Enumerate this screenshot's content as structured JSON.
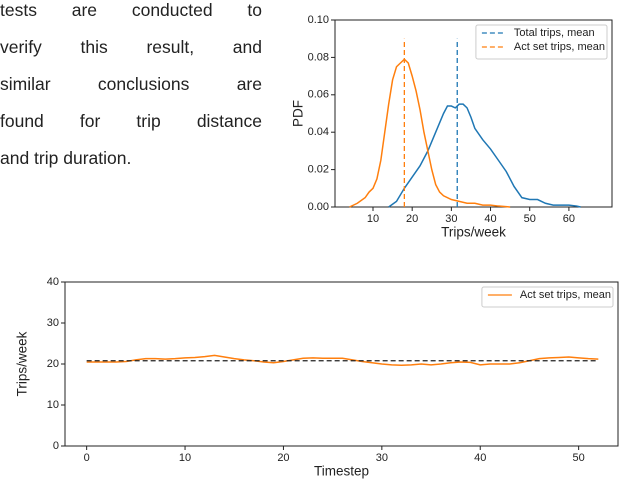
{
  "text": {
    "lines": [
      "tests are conducted to",
      "verify this result, and",
      "similar conclusions are",
      "found for trip distance",
      "and trip duration."
    ]
  },
  "chart_data": [
    {
      "type": "line",
      "xlabel": "Trips/week",
      "ylabel": "PDF",
      "xlim": [
        0.3,
        71
      ],
      "ylim": [
        0,
        0.1
      ],
      "xticks": [
        10,
        20,
        30,
        40,
        50,
        60
      ],
      "yticks": [
        {
          "value": 0,
          "label": "0.00"
        },
        {
          "value": 0.02,
          "label": "0.02"
        },
        {
          "value": 0.04,
          "label": "0.04"
        },
        {
          "value": 0.06,
          "label": "0.06"
        },
        {
          "value": 0.08,
          "label": "0.08"
        },
        {
          "value": 0.1,
          "label": "0.10"
        }
      ],
      "legend": "upper right",
      "series": [
        {
          "color": "#1f77b4",
          "x": [
            14,
            16,
            18,
            20,
            22,
            24,
            26,
            28,
            29,
            30,
            31,
            32,
            33,
            34,
            35,
            36,
            38,
            40,
            42,
            44,
            46,
            48,
            50,
            52,
            54,
            56,
            58,
            60,
            62,
            63
          ],
          "values": [
            0,
            0.003,
            0.01,
            0.016,
            0.022,
            0.03,
            0.04,
            0.05,
            0.054,
            0.054,
            0.053,
            0.055,
            0.055,
            0.053,
            0.048,
            0.042,
            0.036,
            0.031,
            0.025,
            0.019,
            0.011,
            0.005,
            0.004,
            0.004,
            0.002,
            0.001,
            0.001,
            0.001,
            0.0005,
            0
          ]
        },
        {
          "color": "#ff7f0e",
          "x": [
            4,
            6,
            8,
            9,
            10,
            11,
            12,
            13,
            14,
            15,
            16,
            17,
            18,
            19,
            20,
            21,
            22,
            23,
            24,
            25,
            26,
            27,
            28,
            30,
            32,
            34,
            36,
            38,
            40,
            42,
            45
          ],
          "values": [
            0,
            0.002,
            0.005,
            0.008,
            0.01,
            0.015,
            0.025,
            0.04,
            0.055,
            0.068,
            0.075,
            0.077,
            0.079,
            0.077,
            0.07,
            0.062,
            0.052,
            0.04,
            0.03,
            0.02,
            0.012,
            0.008,
            0.006,
            0.004,
            0.003,
            0.002,
            0.002,
            0.001,
            0.001,
            0.0005,
            0
          ]
        },
        {
          "name": "Total trips, mean",
          "color": "#1f77b4",
          "dashed": true,
          "x": [
            31.5,
            31.5
          ],
          "values": [
            0,
            0.09
          ]
        },
        {
          "name": "Act set trips, mean",
          "color": "#ff7f0e",
          "dashed": true,
          "x": [
            18,
            18
          ],
          "values": [
            0,
            0.09
          ]
        }
      ]
    },
    {
      "type": "line",
      "xlabel": "Timestep",
      "ylabel": "Trips/week",
      "xlim": [
        -2.2,
        54
      ],
      "ylim": [
        0,
        40
      ],
      "xticks": [
        0,
        10,
        20,
        30,
        40,
        50
      ],
      "yticks": [
        0,
        10,
        20,
        30,
        40
      ],
      "legend": "upper right",
      "series": [
        {
          "name": "Act set trips, mean",
          "color": "#ff7f0e",
          "x": [
            0,
            1,
            2,
            3,
            4,
            5,
            6,
            7,
            8,
            9,
            10,
            11,
            12,
            13,
            14,
            15,
            16,
            17,
            18,
            19,
            20,
            21,
            22,
            23,
            24,
            25,
            26,
            27,
            28,
            29,
            30,
            31,
            32,
            33,
            34,
            35,
            36,
            37,
            38,
            39,
            40,
            41,
            42,
            43,
            44,
            45,
            46,
            47,
            48,
            49,
            50,
            51,
            52
          ],
          "values": [
            20.5,
            20.5,
            20.5,
            20.5,
            20.6,
            21,
            21.3,
            21.3,
            21.2,
            21.3,
            21.5,
            21.6,
            21.8,
            22.1,
            21.7,
            21.3,
            21,
            20.8,
            20.5,
            20.3,
            20.6,
            21,
            21.4,
            21.5,
            21.4,
            21.4,
            21.4,
            21,
            20.6,
            20.3,
            20,
            19.8,
            19.7,
            19.8,
            20,
            19.8,
            20,
            20.3,
            20.5,
            20.4,
            19.8,
            20,
            20,
            20,
            20.3,
            20.8,
            21.3,
            21.5,
            21.6,
            21.7,
            21.5,
            21.3,
            21.2
          ]
        },
        {
          "color": "#222222",
          "dashed": true,
          "x": [
            0,
            52
          ],
          "values": [
            20.8,
            20.8
          ]
        }
      ]
    }
  ]
}
